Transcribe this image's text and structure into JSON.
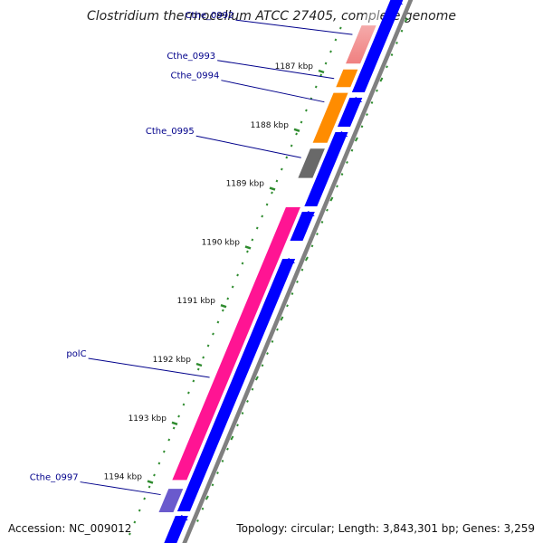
{
  "header": {
    "title": "Clostridium thermocellum ATCC 27405, complete genome"
  },
  "footer": {
    "accession": "Accession: NC_009012",
    "summary": "Topology: circular; Length: 3,843,301 bp; Genes: 3,259"
  },
  "ruler": {
    "unit": "kbp",
    "ticks": [
      {
        "label": "1187 kbp",
        "kb": 1187
      },
      {
        "label": "1188 kbp",
        "kb": 1188
      },
      {
        "label": "1189 kbp",
        "kb": 1189
      },
      {
        "label": "1190 kbp",
        "kb": 1190
      },
      {
        "label": "1191 kbp",
        "kb": 1191
      },
      {
        "label": "1192 kbp",
        "kb": 1192
      },
      {
        "label": "1193 kbp",
        "kb": 1193
      },
      {
        "label": "1194 kbp",
        "kb": 1194
      }
    ]
  },
  "genes": [
    {
      "name": "Cthe_0992",
      "start_kb": 1186.2,
      "end_kb": 1186.85,
      "color": "#f08080"
    },
    {
      "name": "Cthe_0993",
      "start_kb": 1186.95,
      "end_kb": 1187.25,
      "color": "#ff8c00"
    },
    {
      "name": "Cthe_0994",
      "start_kb": 1187.35,
      "end_kb": 1188.2,
      "color": "#ff8c00"
    },
    {
      "name": "Cthe_0995",
      "start_kb": 1188.3,
      "end_kb": 1188.8,
      "color": "#696969"
    },
    {
      "name": "polC",
      "start_kb": 1189.3,
      "end_kb": 1193.95,
      "color": "#ff1493"
    },
    {
      "name": "Cthe_0997",
      "start_kb": 1194.1,
      "end_kb": 1194.5,
      "color": "#6a5acd"
    }
  ],
  "colors": {
    "cds_lane": "#0000ff",
    "backbone": "#808080",
    "tick_mark": "#2e8b2e",
    "gene_label": "#00008b",
    "label_line": "#00008b"
  }
}
